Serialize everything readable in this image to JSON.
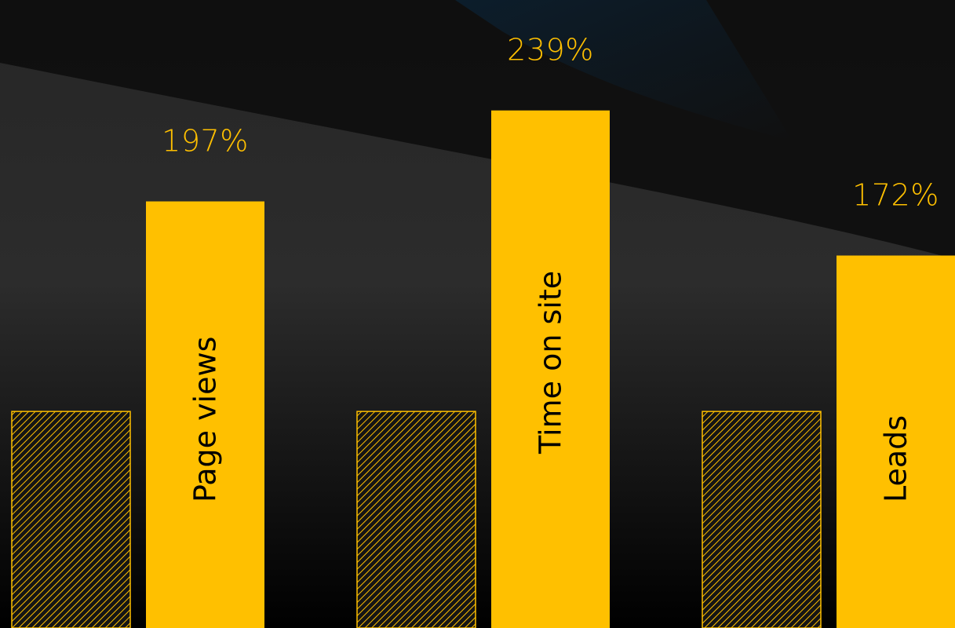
{
  "chart_data": {
    "type": "bar",
    "categories": [
      "Page views",
      "Time on site",
      "Leads"
    ],
    "series": [
      {
        "values": [
          100,
          100,
          100
        ]
      },
      {
        "values": [
          197,
          239,
          172
        ]
      }
    ],
    "value_labels": [
      "197%",
      "239%",
      "172%"
    ],
    "ylim": [
      0,
      290
    ],
    "grid": false,
    "legend": "none"
  },
  "colors": {
    "accent": "#FFC000",
    "background_top": "#3a3a3a",
    "background_bottom": "#000000"
  }
}
